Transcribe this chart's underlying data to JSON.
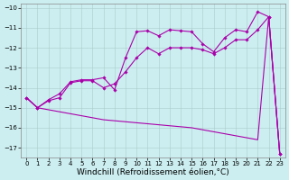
{
  "xlabel": "Windchill (Refroidissement éolien,°C)",
  "x": [
    0,
    1,
    2,
    3,
    4,
    5,
    6,
    7,
    8,
    9,
    10,
    11,
    12,
    13,
    14,
    15,
    16,
    17,
    18,
    19,
    20,
    21,
    22,
    23
  ],
  "line_top": [
    -14.5,
    -15.0,
    -14.6,
    -14.3,
    -13.7,
    -13.6,
    -13.6,
    -13.5,
    -14.1,
    -12.5,
    -11.2,
    -11.15,
    -11.4,
    -11.1,
    -11.15,
    -11.2,
    -11.8,
    -12.2,
    -11.5,
    -11.1,
    -11.2,
    -10.2,
    -10.45,
    -17.3
  ],
  "line_mid": [
    -14.5,
    -15.0,
    -14.65,
    -14.5,
    -13.75,
    -13.65,
    -13.65,
    -14.0,
    -13.8,
    -13.2,
    -12.5,
    -12.0,
    -12.3,
    -12.0,
    -12.0,
    -12.0,
    -12.1,
    -12.3,
    -12.0,
    -11.6,
    -11.6,
    -11.1,
    -10.45,
    -17.3
  ],
  "line_bot": [
    -14.5,
    -15.0,
    -15.1,
    -15.2,
    -15.3,
    -15.4,
    -15.5,
    -15.6,
    -15.65,
    -15.7,
    -15.75,
    -15.8,
    -15.85,
    -15.9,
    -15.95,
    -16.0,
    -16.1,
    -16.2,
    -16.3,
    -16.4,
    -16.5,
    -16.6,
    -10.45,
    -17.3
  ],
  "background_color": "#cceef0",
  "grid_color": "#aacccc",
  "line_color": "#aa00aa",
  "marker": "D",
  "marker_size": 1.8,
  "ylim": [
    -17.5,
    -9.8
  ],
  "yticks": [
    -17,
    -16,
    -15,
    -14,
    -13,
    -12,
    -11,
    -10
  ],
  "xticks": [
    0,
    1,
    2,
    3,
    4,
    5,
    6,
    7,
    8,
    9,
    10,
    11,
    12,
    13,
    14,
    15,
    16,
    17,
    18,
    19,
    20,
    21,
    22,
    23
  ],
  "tick_fontsize": 5.0,
  "xlabel_fontsize": 6.5,
  "linewidth": 0.8
}
